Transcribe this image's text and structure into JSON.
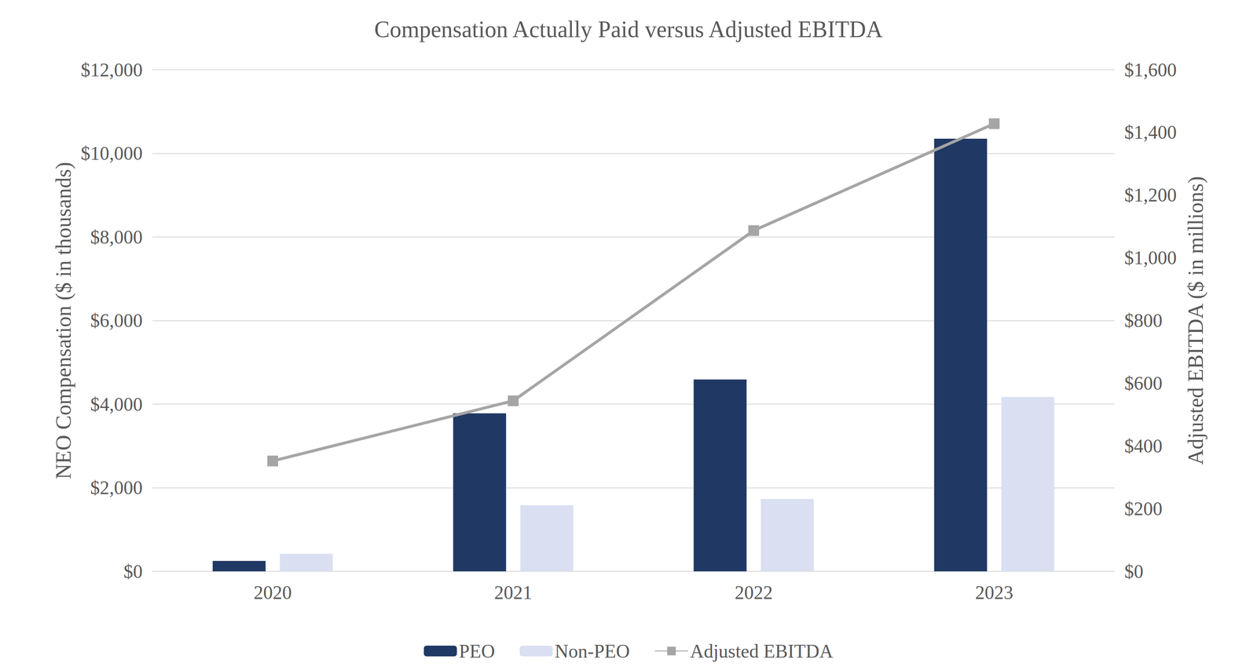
{
  "chart_data": {
    "type": "bar",
    "title": "Compensation Actually Paid versus Adjusted EBITDA",
    "y_label": "NEO Compensation ($ in thousands)",
    "y2_label": "Adjusted EBITDA ($ in millions)",
    "categories": [
      "2020",
      "2021",
      "2022",
      "2023"
    ],
    "series": [
      {
        "name": "PEO",
        "type": "bar",
        "color": "#203864",
        "values": [
          250,
          3780,
          4590,
          10350
        ]
      },
      {
        "name": "Non-PEO",
        "type": "bar",
        "color": "#dae0f2",
        "values": [
          420,
          1580,
          1730,
          4170
        ]
      },
      {
        "name": "Adjusted EBITDA",
        "type": "line",
        "axis": "y2",
        "color": "#a5a5a5",
        "marker": "square",
        "values": [
          352,
          544,
          1087,
          1428
        ]
      }
    ],
    "ylim": [
      0,
      12000
    ],
    "yticks": [
      {
        "value": 0,
        "label": "$0"
      },
      {
        "value": 2000,
        "label": "$2,000"
      },
      {
        "value": 4000,
        "label": "$4,000"
      },
      {
        "value": 6000,
        "label": "$6,000"
      },
      {
        "value": 8000,
        "label": "$8,000"
      },
      {
        "value": 10000,
        "label": "$10,000"
      },
      {
        "value": 12000,
        "label": "$12,000"
      }
    ],
    "y2lim": [
      0,
      1600
    ],
    "y2ticks": [
      {
        "value": 0,
        "label": "$0"
      },
      {
        "value": 200,
        "label": "$200"
      },
      {
        "value": 400,
        "label": "$400"
      },
      {
        "value": 600,
        "label": "$600"
      },
      {
        "value": 800,
        "label": "$800"
      },
      {
        "value": 1000,
        "label": "$1,000"
      },
      {
        "value": 1200,
        "label": "$1,200"
      },
      {
        "value": 1400,
        "label": "$1,400"
      },
      {
        "value": 1600,
        "label": "$1,600"
      }
    ],
    "grid": true,
    "legend": "bottom"
  }
}
